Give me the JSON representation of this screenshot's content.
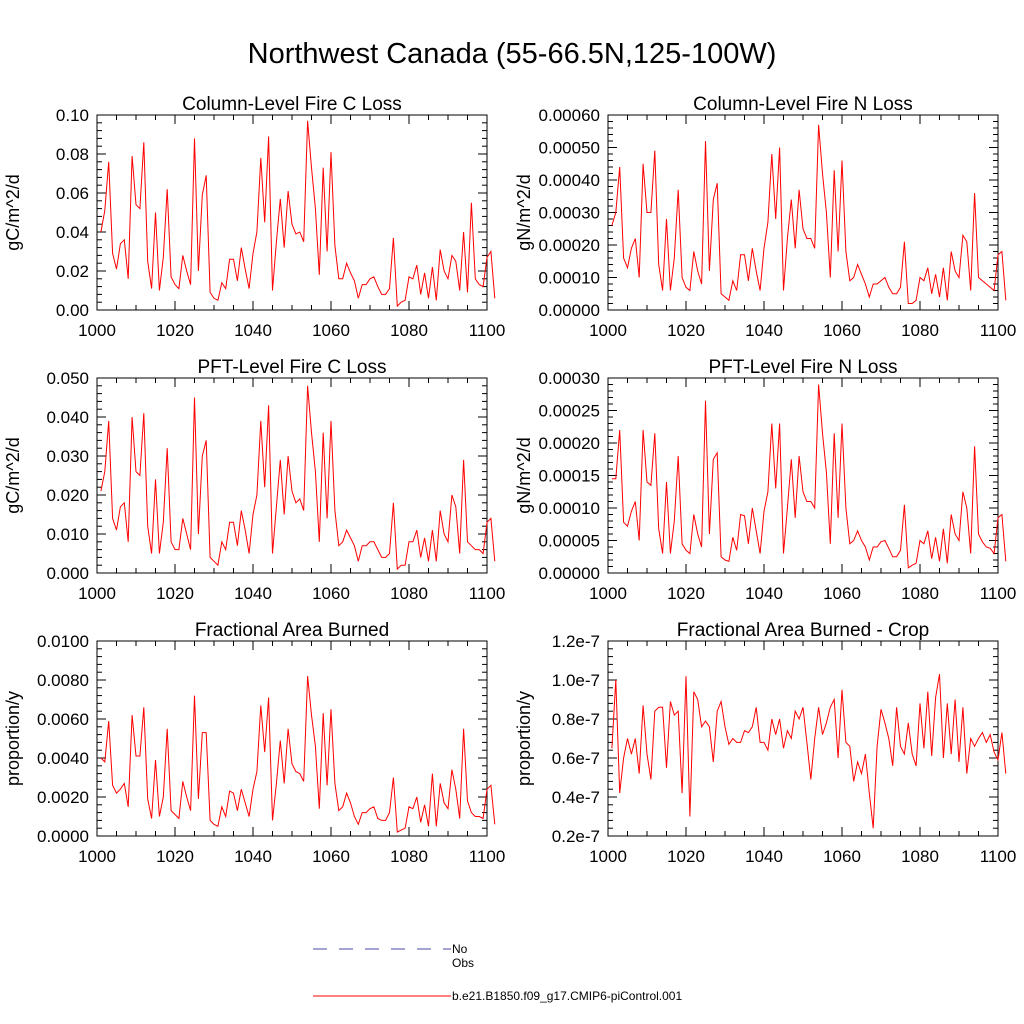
{
  "figure": {
    "title": "Northwest Canada (55-66.5N,125-100W)",
    "colors": {
      "model": "#ff0000",
      "obs": "#4a4aa8",
      "axis": "#000000"
    }
  },
  "legend": {
    "entries": [
      {
        "label": "No Obs",
        "color": "#4a4aa8",
        "style": "dashed"
      },
      {
        "label": "b.e21.B1850.f09_g17.CMIP6-piControl.001",
        "color": "#ff0000",
        "style": "solid"
      }
    ]
  },
  "chart_data": [
    {
      "type": "line",
      "title": "Column-Level Fire C Loss",
      "ylabel": "gC/m^2/d",
      "xlabel": "",
      "xlim": [
        1000,
        1100
      ],
      "ylim": [
        0,
        0.1
      ],
      "xticks": [
        1000,
        1020,
        1040,
        1060,
        1080,
        1100
      ],
      "yticks": [
        0,
        0.02,
        0.04,
        0.06,
        0.08,
        0.1
      ],
      "ytick_labels": [
        "0.00",
        "0.02",
        "0.04",
        "0.06",
        "0.08",
        "0.10"
      ],
      "x_start": 1001,
      "series": [
        {
          "name": "b.e21.B1850.f09_g17.CMIP6-piControl.001",
          "values": [
            0.04,
            0.051,
            0.076,
            0.029,
            0.021,
            0.034,
            0.036,
            0.016,
            0.079,
            0.054,
            0.052,
            0.086,
            0.025,
            0.011,
            0.05,
            0.01,
            0.027,
            0.062,
            0.017,
            0.013,
            0.011,
            0.028,
            0.02,
            0.013,
            0.088,
            0.02,
            0.059,
            0.069,
            0.009,
            0.006,
            0.005,
            0.014,
            0.011,
            0.026,
            0.026,
            0.015,
            0.032,
            0.021,
            0.011,
            0.029,
            0.04,
            0.078,
            0.045,
            0.089,
            0.01,
            0.035,
            0.057,
            0.032,
            0.061,
            0.044,
            0.039,
            0.04,
            0.035,
            0.097,
            0.073,
            0.052,
            0.018,
            0.073,
            0.03,
            0.081,
            0.033,
            0.016,
            0.016,
            0.024,
            0.019,
            0.015,
            0.006,
            0.013,
            0.013,
            0.016,
            0.017,
            0.012,
            0.008,
            0.008,
            0.011,
            0.037,
            0.002,
            0.004,
            0.005,
            0.017,
            0.016,
            0.023,
            0.008,
            0.019,
            0.006,
            0.022,
            0.005,
            0.031,
            0.02,
            0.016,
            0.028,
            0.025,
            0.01,
            0.04,
            0.009,
            0.055,
            0.016,
            0.013,
            0.012,
            0.027,
            0.03,
            0.006
          ]
        }
      ]
    },
    {
      "type": "line",
      "title": "Column-Level Fire N Loss",
      "ylabel": "gN/m^2/d",
      "xlabel": "",
      "xlim": [
        1000,
        1100
      ],
      "ylim": [
        0,
        0.0006
      ],
      "xticks": [
        1000,
        1020,
        1040,
        1060,
        1080,
        1100
      ],
      "yticks": [
        0,
        0.0001,
        0.0002,
        0.0003,
        0.0004,
        0.0005,
        0.0006
      ],
      "ytick_labels": [
        "0.00000",
        "0.00010",
        "0.00020",
        "0.00030",
        "0.00040",
        "0.00050",
        "0.00060"
      ],
      "x_start": 1001,
      "series": [
        {
          "name": "b.e21.B1850.f09_g17.CMIP6-piControl.001",
          "values": [
            0.00026,
            0.0003,
            0.00044,
            0.00016,
            0.00013,
            0.00019,
            0.00022,
            0.0001,
            0.00045,
            0.0003,
            0.0003,
            0.00049,
            0.00014,
            6e-05,
            0.00028,
            6e-05,
            0.00016,
            0.00037,
            0.0001,
            7e-05,
            6e-05,
            0.00018,
            0.00012,
            8e-05,
            0.00052,
            0.00012,
            0.00034,
            0.00039,
            5e-05,
            4e-05,
            3e-05,
            9e-05,
            6e-05,
            0.00017,
            0.00017,
            9e-05,
            0.00019,
            0.00012,
            6e-05,
            0.00019,
            0.00027,
            0.00048,
            0.00028,
            0.0005,
            6e-05,
            0.00022,
            0.00034,
            0.00019,
            0.00037,
            0.00025,
            0.00022,
            0.00022,
            0.00019,
            0.00057,
            0.00042,
            0.0003,
            0.0001,
            0.00043,
            0.00018,
            0.00046,
            0.00018,
            9e-05,
            0.0001,
            0.00014,
            0.00011,
            8e-05,
            4e-05,
            8e-05,
            8e-05,
            9e-05,
            0.0001,
            7e-05,
            5e-05,
            5e-05,
            7e-05,
            0.00021,
            2e-05,
            2e-05,
            3e-05,
            0.0001,
            9e-05,
            0.00013,
            5e-05,
            0.00011,
            4e-05,
            0.00013,
            3e-05,
            0.00018,
            0.00012,
            0.0001,
            0.00023,
            0.00021,
            6e-05,
            0.00036,
            0.0001,
            9e-05,
            8e-05,
            7e-05,
            6e-05,
            0.00017,
            0.00018,
            3e-05
          ]
        }
      ]
    },
    {
      "type": "line",
      "title": "PFT-Level Fire C Loss",
      "ylabel": "gC/m^2/d",
      "xlabel": "",
      "xlim": [
        1000,
        1100
      ],
      "ylim": [
        0,
        0.05
      ],
      "xticks": [
        1000,
        1020,
        1040,
        1060,
        1080,
        1100
      ],
      "yticks": [
        0,
        0.01,
        0.02,
        0.03,
        0.04,
        0.05
      ],
      "ytick_labels": [
        "0.000",
        "0.010",
        "0.020",
        "0.030",
        "0.040",
        "0.050"
      ],
      "x_start": 1001,
      "series": [
        {
          "name": "b.e21.B1850.f09_g17.CMIP6-piControl.001",
          "values": [
            0.021,
            0.026,
            0.039,
            0.014,
            0.011,
            0.017,
            0.018,
            0.008,
            0.04,
            0.026,
            0.025,
            0.041,
            0.012,
            0.005,
            0.024,
            0.005,
            0.013,
            0.032,
            0.008,
            0.006,
            0.006,
            0.014,
            0.01,
            0.006,
            0.045,
            0.01,
            0.03,
            0.034,
            0.004,
            0.003,
            0.002,
            0.008,
            0.006,
            0.013,
            0.013,
            0.007,
            0.016,
            0.011,
            0.005,
            0.015,
            0.02,
            0.039,
            0.022,
            0.043,
            0.005,
            0.017,
            0.029,
            0.015,
            0.03,
            0.021,
            0.018,
            0.019,
            0.016,
            0.048,
            0.036,
            0.026,
            0.008,
            0.036,
            0.014,
            0.039,
            0.016,
            0.007,
            0.008,
            0.011,
            0.009,
            0.007,
            0.003,
            0.007,
            0.007,
            0.008,
            0.008,
            0.006,
            0.004,
            0.004,
            0.005,
            0.018,
            0.001,
            0.002,
            0.002,
            0.008,
            0.008,
            0.011,
            0.004,
            0.009,
            0.003,
            0.011,
            0.003,
            0.016,
            0.01,
            0.008,
            0.02,
            0.017,
            0.005,
            0.029,
            0.008,
            0.007,
            0.006,
            0.006,
            0.005,
            0.013,
            0.014,
            0.003
          ]
        }
      ]
    },
    {
      "type": "line",
      "title": "PFT-Level Fire N Loss",
      "ylabel": "gN/m^2/d",
      "xlabel": "",
      "xlim": [
        1000,
        1100
      ],
      "ylim": [
        0,
        0.0003
      ],
      "xticks": [
        1000,
        1020,
        1040,
        1060,
        1080,
        1100
      ],
      "yticks": [
        0,
        5e-05,
        0.0001,
        0.00015,
        0.0002,
        0.00025,
        0.0003
      ],
      "ytick_labels": [
        "0.00000",
        "0.00005",
        "0.00010",
        "0.00015",
        "0.00020",
        "0.00025",
        "0.00030"
      ],
      "x_start": 1001,
      "series": [
        {
          "name": "b.e21.B1850.f09_g17.CMIP6-piControl.001",
          "values": [
            0.000145,
            0.000145,
            0.00022,
            7.8e-05,
            7.2e-05,
            9.5e-05,
            0.00011,
            5e-05,
            0.00022,
            0.00014,
            0.000135,
            0.000215,
            6.8e-05,
            3e-05,
            0.00014,
            3e-05,
            8e-05,
            0.00018,
            4.5e-05,
            3.5e-05,
            3e-05,
            9e-05,
            6e-05,
            4e-05,
            0.000265,
            6e-05,
            0.000175,
            0.000185,
            2.5e-05,
            2e-05,
            1.8e-05,
            5.5e-05,
            3.5e-05,
            9e-05,
            8.8e-05,
            4.5e-05,
            0.0001,
            6.5e-05,
            3e-05,
            9.5e-05,
            0.000125,
            0.00023,
            0.00013,
            0.00023,
            3e-05,
            0.0001,
            0.000175,
            8.5e-05,
            0.00018,
            0.000125,
            0.00011,
            0.00011,
            0.0001,
            0.00029,
            0.000215,
            0.000155,
            4.5e-05,
            0.000215,
            8.5e-05,
            0.00023,
            0.0001,
            4.5e-05,
            5e-05,
            6.5e-05,
            5e-05,
            4e-05,
            2e-05,
            4e-05,
            4e-05,
            4.8e-05,
            5e-05,
            3.8e-05,
            2.5e-05,
            2.5e-05,
            3.5e-05,
            0.000105,
            8e-06,
            1.2e-05,
            1.5e-05,
            5e-05,
            4.5e-05,
            6.5e-05,
            2.2e-05,
            5.5e-05,
            1.8e-05,
            6.8e-05,
            1.5e-05,
            9e-05,
            6e-05,
            5e-05,
            0.000125,
            0.0001,
            3e-05,
            0.000195,
            6e-05,
            4.8e-05,
            4e-05,
            3.8e-05,
            3e-05,
            8.5e-05,
            9e-05,
            1.8e-05
          ]
        }
      ]
    },
    {
      "type": "line",
      "title": "Fractional Area Burned",
      "ylabel": "proportion/y",
      "xlabel": "",
      "xlim": [
        1000,
        1100
      ],
      "ylim": [
        0,
        0.01
      ],
      "xticks": [
        1000,
        1020,
        1040,
        1060,
        1080,
        1100
      ],
      "yticks": [
        0,
        0.002,
        0.004,
        0.006,
        0.008,
        0.01
      ],
      "ytick_labels": [
        "0.0000",
        "0.0020",
        "0.0040",
        "0.0060",
        "0.0080",
        "0.0100"
      ],
      "x_start": 1001,
      "series": [
        {
          "name": "b.e21.B1850.f09_g17.CMIP6-piControl.001",
          "values": [
            0.004,
            0.0038,
            0.0059,
            0.0026,
            0.0022,
            0.0024,
            0.0027,
            0.0015,
            0.0062,
            0.0041,
            0.0041,
            0.0066,
            0.0019,
            0.0009,
            0.0039,
            0.001,
            0.002,
            0.0055,
            0.0013,
            0.0011,
            0.0009,
            0.0028,
            0.002,
            0.0013,
            0.0072,
            0.0019,
            0.0053,
            0.0053,
            0.0008,
            0.0006,
            0.0005,
            0.0015,
            0.001,
            0.0023,
            0.0022,
            0.0013,
            0.0024,
            0.0017,
            0.001,
            0.0024,
            0.0033,
            0.0067,
            0.0043,
            0.0071,
            0.0008,
            0.0027,
            0.0049,
            0.0027,
            0.0055,
            0.0037,
            0.0033,
            0.0032,
            0.0028,
            0.0082,
            0.0062,
            0.0046,
            0.0014,
            0.0063,
            0.0026,
            0.0065,
            0.0027,
            0.0013,
            0.0015,
            0.0022,
            0.0017,
            0.001,
            0.0006,
            0.0012,
            0.0012,
            0.0014,
            0.0015,
            0.0009,
            0.0008,
            0.0008,
            0.0012,
            0.003,
            0.0002,
            0.0003,
            0.0004,
            0.0015,
            0.0014,
            0.002,
            0.0007,
            0.0016,
            0.0005,
            0.0032,
            0.0005,
            0.0027,
            0.0017,
            0.0014,
            0.0034,
            0.0024,
            0.0009,
            0.0055,
            0.0018,
            0.0012,
            0.001,
            0.001,
            0.0009,
            0.0024,
            0.0026,
            0.0006
          ]
        }
      ]
    },
    {
      "type": "line",
      "title": "Fractional Area Burned - Crop",
      "ylabel": "proportion/y",
      "xlabel": "",
      "xlim": [
        1000,
        1100
      ],
      "ylim": [
        2e-08,
        1.2e-07
      ],
      "xticks": [
        1000,
        1020,
        1040,
        1060,
        1080,
        1100
      ],
      "yticks": [
        2e-08,
        4e-08,
        6e-08,
        8e-08,
        1e-07,
        1.2e-07
      ],
      "ytick_labels": [
        "0.2e-7",
        "0.4e-7",
        "0.6e-7",
        "0.8e-7",
        "1.0e-7",
        "1.2e-7"
      ],
      "x_start": 1001,
      "series": [
        {
          "name": "b.e21.B1850.f09_g17.CMIP6-piControl.001",
          "values": [
            6.5e-08,
            1e-07,
            4.2e-08,
            6e-08,
            7e-08,
            6.2e-08,
            7e-08,
            5.2e-08,
            8.7e-08,
            6.2e-08,
            4.9e-08,
            8.4e-08,
            8.6e-08,
            8.6e-08,
            5.5e-08,
            8.9e-08,
            8.2e-08,
            8.4e-08,
            4.2e-08,
            1.02e-07,
            3e-08,
            9.4e-08,
            9e-08,
            7.6e-08,
            7.9e-08,
            7.6e-08,
            5.8e-08,
            8.4e-08,
            8.9e-08,
            7.6e-08,
            6.7e-08,
            7e-08,
            6.8e-08,
            6.8e-08,
            7.4e-08,
            7.3e-08,
            7.6e-08,
            8.6e-08,
            6.8e-08,
            6.8e-08,
            6.4e-08,
            8e-08,
            7.2e-08,
            8e-08,
            6.5e-08,
            7.4e-08,
            7e-08,
            8.4e-08,
            8e-08,
            8.6e-08,
            6.8e-08,
            4.9e-08,
            7e-08,
            8.6e-08,
            7.2e-08,
            7.8e-08,
            8.6e-08,
            9e-08,
            6e-08,
            9.5e-08,
            6.8e-08,
            6.6e-08,
            4.8e-08,
            5.8e-08,
            5.2e-08,
            6.2e-08,
            4.2e-08,
            2.4e-08,
            6.6e-08,
            8.5e-08,
            7.8e-08,
            7e-08,
            5.6e-08,
            8.6e-08,
            6.6e-08,
            6.2e-08,
            7.8e-08,
            6.2e-08,
            5.6e-08,
            8.8e-08,
            6.5e-08,
            9.4e-08,
            6.1e-08,
            9.1e-08,
            1.03e-07,
            6e-08,
            8.8e-08,
            6.2e-08,
            9e-08,
            5.8e-08,
            8.6e-08,
            5.2e-08,
            7e-08,
            6.6e-08,
            7e-08,
            7.3e-08,
            6.8e-08,
            7.2e-08,
            6.3e-08,
            5.9e-08,
            7.3e-08,
            5.2e-08
          ]
        }
      ]
    }
  ]
}
